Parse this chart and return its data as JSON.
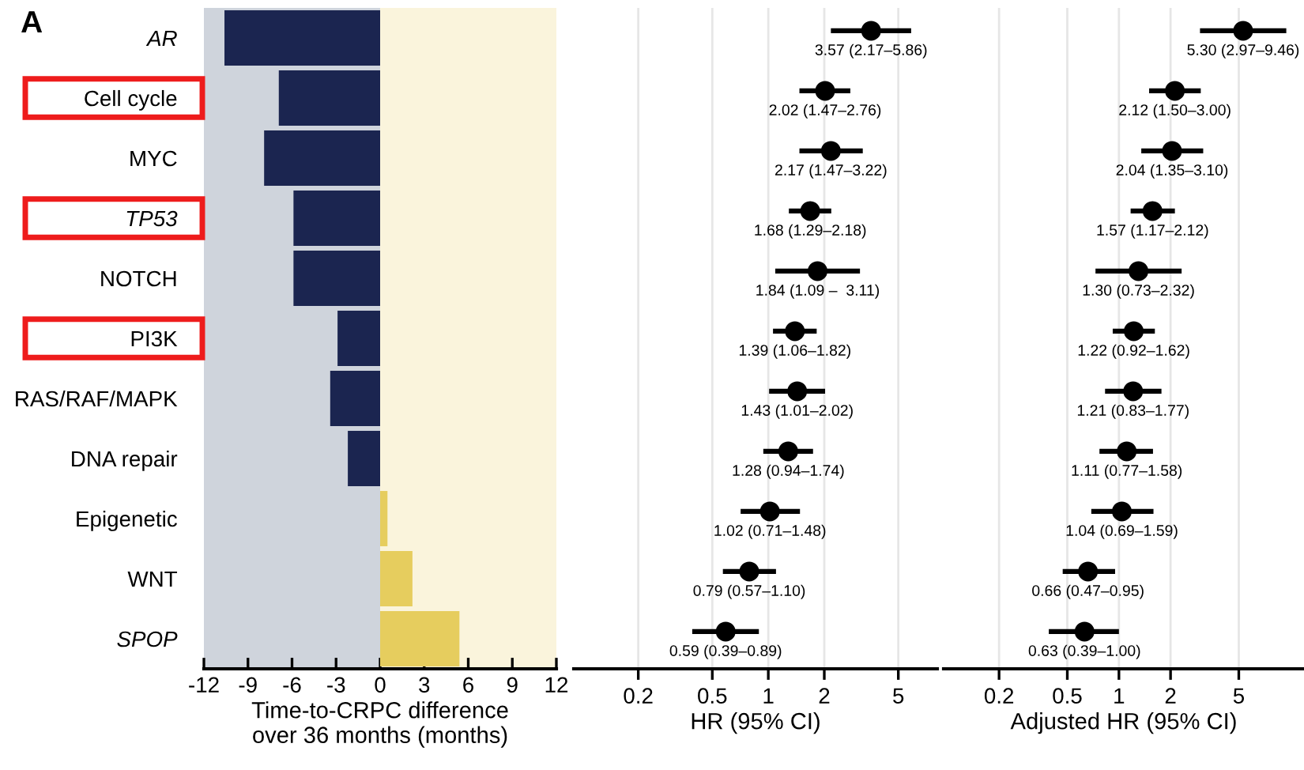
{
  "chart_data": [
    {
      "type": "bar",
      "orientation": "horizontal",
      "xlabel": "Time-to-CRPC difference\nover 36 months (months)",
      "annotations": [
        "A"
      ],
      "categories": [
        "AR",
        "Cell cycle",
        "MYC",
        "TP53",
        "NOTCH",
        "PI3K",
        "RAS/RAF/MAPK",
        "DNA repair",
        "Epigenetic",
        "WNT",
        "SPOP"
      ],
      "values": [
        -10.6,
        -6.9,
        -7.9,
        -5.9,
        -5.9,
        -2.9,
        -3.4,
        -2.2,
        0.5,
        2.2,
        5.4
      ],
      "colors": [
        "#1b2550",
        "#1b2550",
        "#1b2550",
        "#1b2550",
        "#1b2550",
        "#1b2550",
        "#1b2550",
        "#1b2550",
        "#e6cd5e",
        "#e6cd5e",
        "#e6cd5e"
      ],
      "xlim": [
        -12,
        12
      ],
      "xticks": [
        -12,
        -9,
        -6,
        -3,
        0,
        3,
        6,
        9,
        12
      ],
      "bands": [
        {
          "axis": "x",
          "from": -12,
          "to": 0,
          "color": "#cfd4dc"
        },
        {
          "axis": "x",
          "from": 0,
          "to": 12,
          "color": "#faf4dc"
        }
      ],
      "grid": false
    },
    {
      "type": "scatter",
      "orientation": "horizontal",
      "xlabel": "HR (95% CI)",
      "log": "x",
      "tick_labels": "x",
      "grid": "x",
      "marker": "circle",
      "values": [
        3.57,
        2.02,
        2.17,
        1.68,
        1.84,
        1.39,
        1.43,
        1.28,
        1.02,
        0.79,
        0.59
      ],
      "errors": [
        [
          2.17,
          5.86
        ],
        [
          1.47,
          2.76
        ],
        [
          1.47,
          3.22
        ],
        [
          1.29,
          2.18
        ],
        [
          1.09,
          3.11
        ],
        [
          1.06,
          1.82
        ],
        [
          1.01,
          2.02
        ],
        [
          0.94,
          1.74
        ],
        [
          0.71,
          1.48
        ],
        [
          0.57,
          1.1
        ],
        [
          0.39,
          0.89
        ]
      ],
      "value_labels": [
        "3.57 (2.17–5.86)",
        "2.02 (1.47–2.76)",
        "2.17 (1.47–3.22)",
        "1.68 (1.29–2.18)",
        "1.84 (1.09 –  3.11)",
        "1.39 (1.06–1.82)",
        "1.43 (1.01–2.02)",
        "1.28 (0.94–1.74)",
        "1.02 (0.71–1.48)",
        "0.79 (0.57–1.10)",
        "0.59 (0.39–0.89)"
      ],
      "color": "#000000",
      "xlim": [
        0.09,
        8.1
      ],
      "xticks": [
        0.2,
        0.5,
        1,
        2,
        5
      ]
    },
    {
      "type": "scatter",
      "orientation": "horizontal",
      "xlabel": "Adjusted HR (95% CI)",
      "log": "x",
      "tick_labels": "x",
      "grid": "x",
      "marker": "circle",
      "values": [
        5.3,
        2.12,
        2.04,
        1.57,
        1.3,
        1.22,
        1.21,
        1.11,
        1.04,
        0.66,
        0.63
      ],
      "errors": [
        [
          2.97,
          9.46
        ],
        [
          1.5,
          3.0
        ],
        [
          1.35,
          3.1
        ],
        [
          1.17,
          2.12
        ],
        [
          0.73,
          2.32
        ],
        [
          0.92,
          1.62
        ],
        [
          0.83,
          1.77
        ],
        [
          0.77,
          1.58
        ],
        [
          0.69,
          1.59
        ],
        [
          0.47,
          0.95
        ],
        [
          0.39,
          1.0
        ]
      ],
      "value_labels": [
        "5.30 (2.97–9.46)",
        "2.12 (1.50–3.00)",
        "2.04 (1.35–3.10)",
        "1.57 (1.17–2.12)",
        "1.30 (0.73–2.32)",
        "1.22 (0.92–1.62)",
        "1.21 (0.83–1.77)",
        "1.11 (0.77–1.58)",
        "1.04 (0.69–1.59)",
        "0.66 (0.47–0.95)",
        "0.63 (0.39–1.00)"
      ],
      "color": "#000000",
      "xlim": [
        0.095,
        12
      ],
      "xticks": [
        0.2,
        0.5,
        1,
        2,
        5
      ]
    }
  ]
}
